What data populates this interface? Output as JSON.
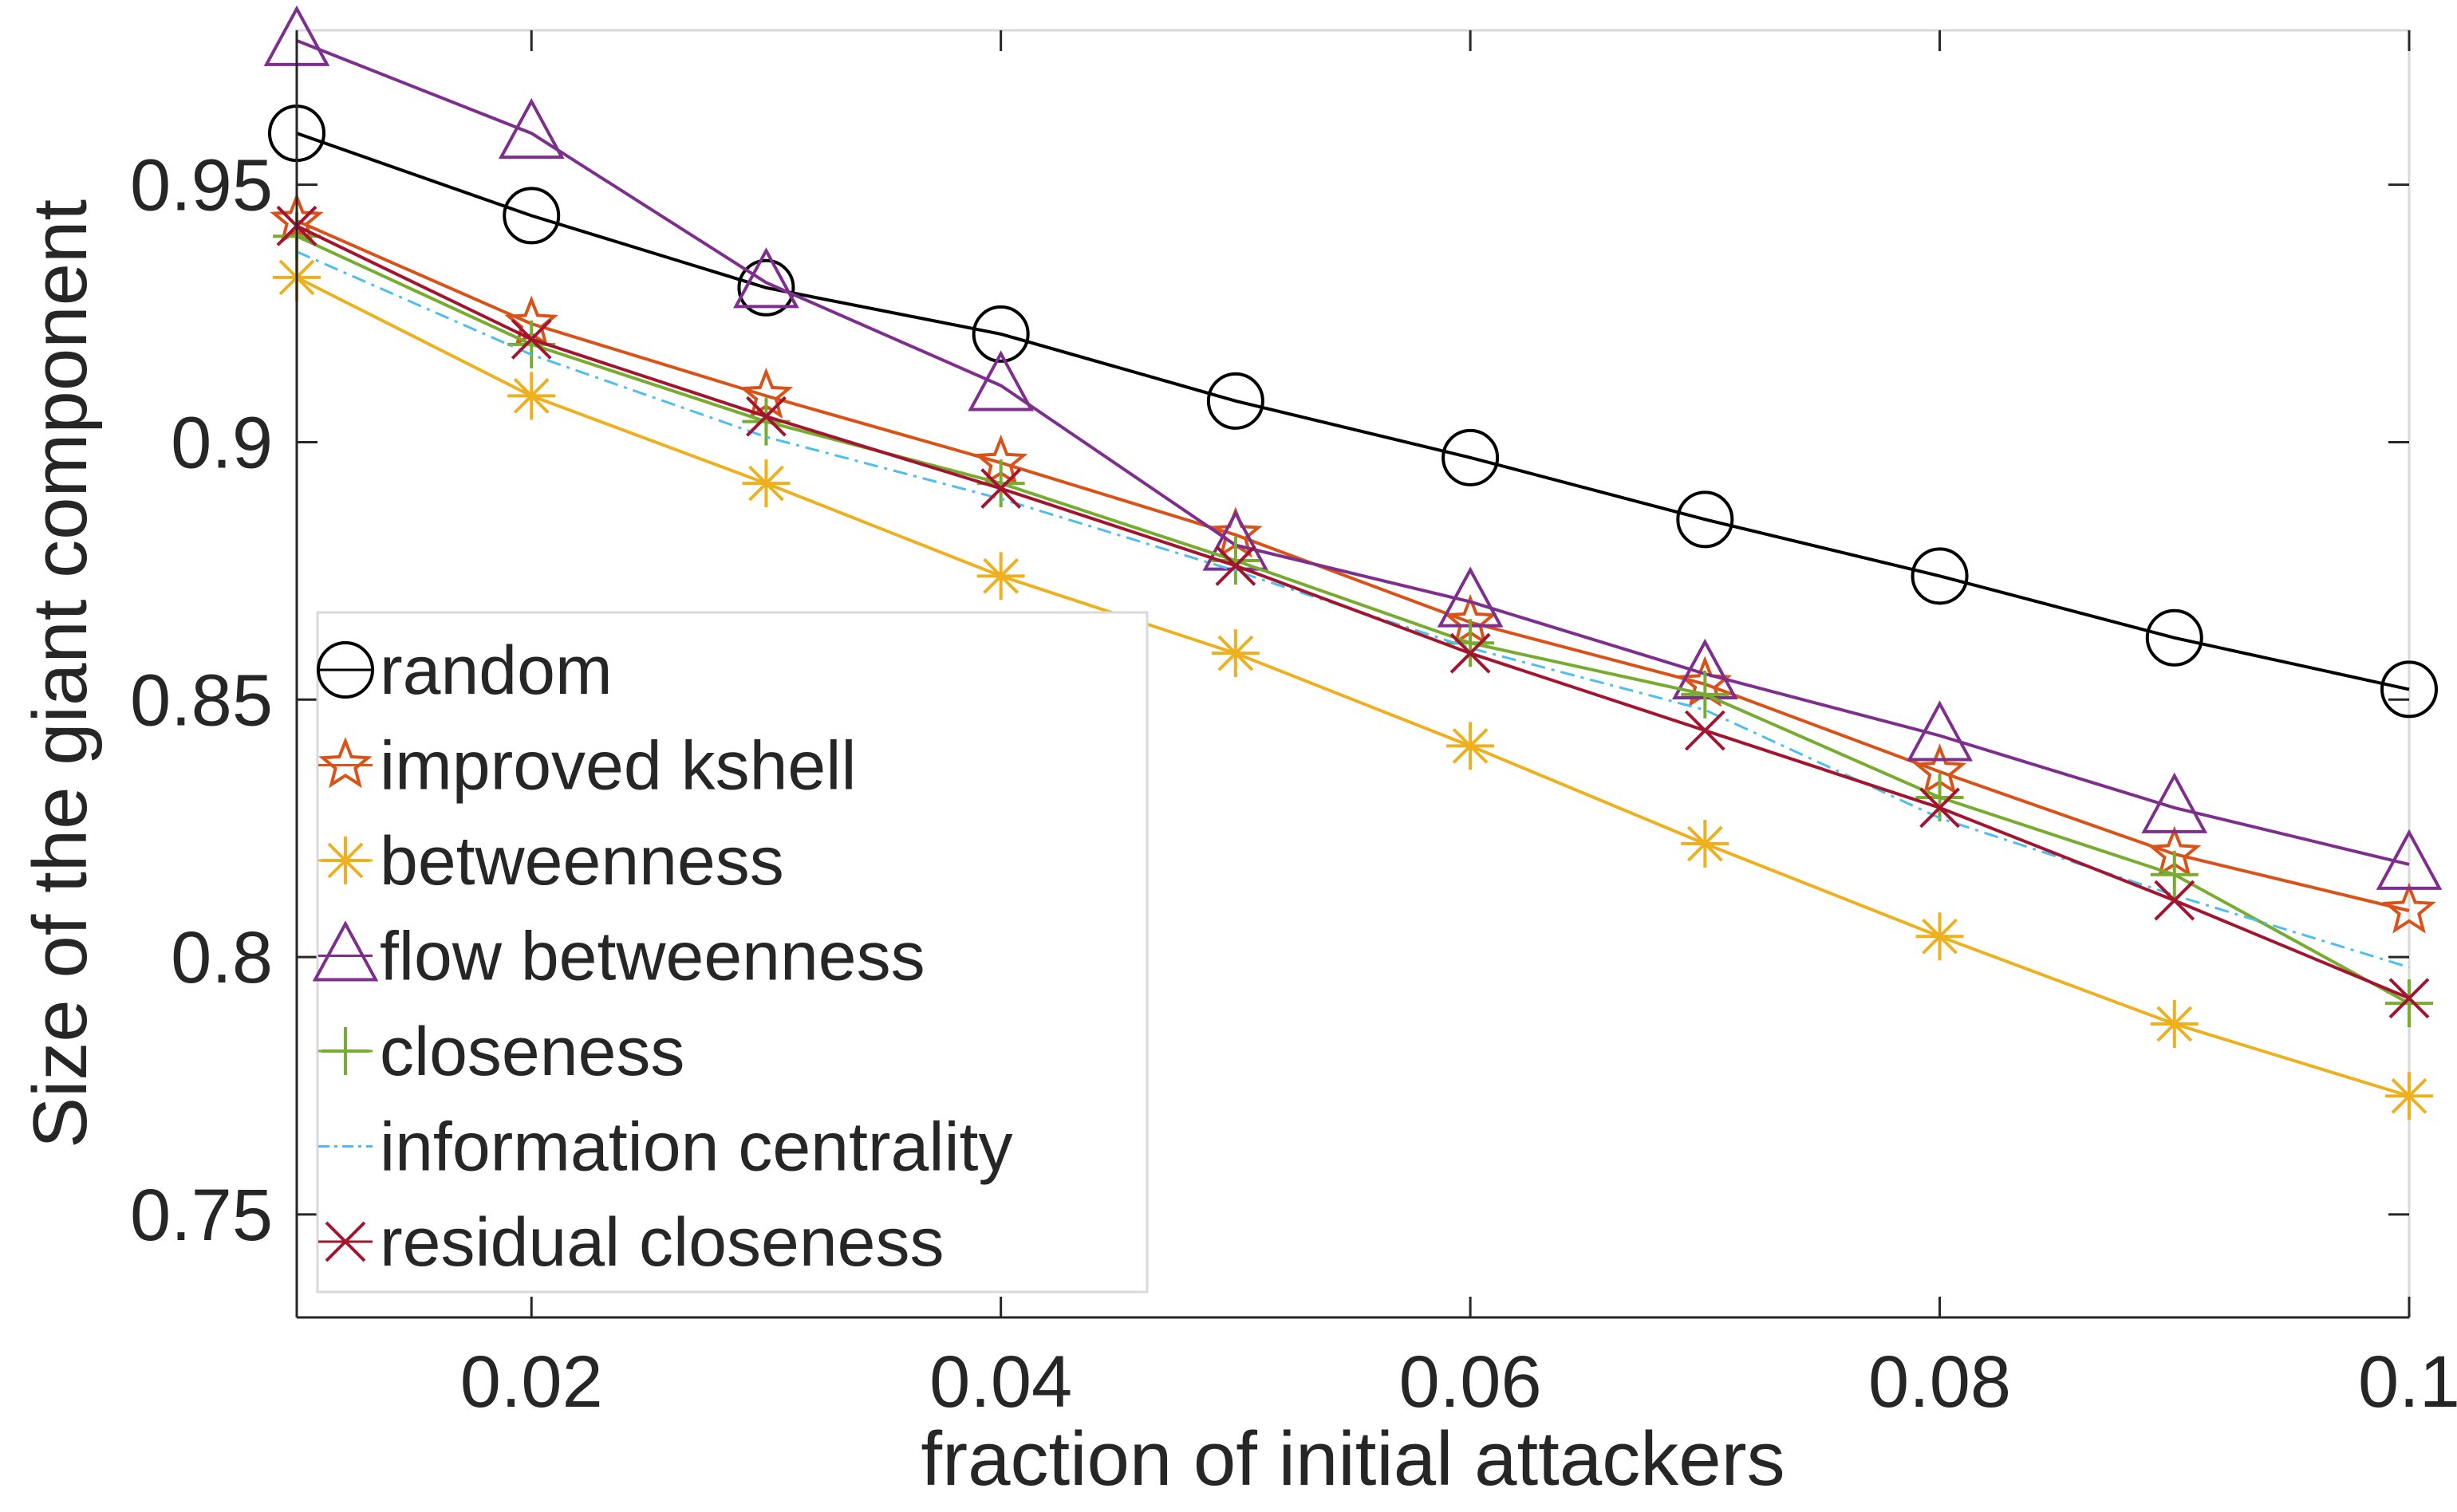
{
  "colors": {
    "random": "#000000",
    "improved_kshell": "#D95319",
    "betweenness": "#EDB120",
    "flow_betweenness": "#7E2F8E",
    "closeness": "#77AC30",
    "information_centrality": "#4DBEEE",
    "residual_closeness": "#A2142F",
    "axis": "#262626",
    "grid_box": "#d9d9d9"
  },
  "chart_data": {
    "type": "line",
    "xlabel": "fraction of initial attackers",
    "ylabel": "Size of the giant component",
    "xlim": [
      0.01,
      0.1
    ],
    "ylim": [
      0.73,
      0.98
    ],
    "x_ticks": [
      0.02,
      0.04,
      0.06,
      0.08,
      0.1
    ],
    "x_tick_labels": [
      "0.02",
      "0.04",
      "0.06",
      "0.08",
      "0.1"
    ],
    "y_ticks": [
      0.75,
      0.8,
      0.85,
      0.9,
      0.95
    ],
    "y_tick_labels": [
      "0.75",
      "0.8",
      "0.85",
      "0.9",
      "0.95"
    ],
    "grid": false,
    "legend_position": "bottom-left",
    "x": [
      0.01,
      0.02,
      0.03,
      0.04,
      0.05,
      0.06,
      0.07,
      0.08,
      0.09,
      0.1
    ],
    "series": [
      {
        "key": "random",
        "name": "random",
        "marker": "circle",
        "line": "solid",
        "values": [
          0.96,
          0.944,
          0.93,
          0.921,
          0.908,
          0.897,
          0.885,
          0.874,
          0.862,
          0.852
        ]
      },
      {
        "key": "improved_kshell",
        "name": "improved kshell",
        "marker": "star",
        "line": "solid",
        "values": [
          0.943,
          0.923,
          0.909,
          0.896,
          0.882,
          0.865,
          0.853,
          0.836,
          0.82,
          0.809
        ]
      },
      {
        "key": "betweenness",
        "name": "betweenness",
        "marker": "asterisk",
        "line": "solid",
        "values": [
          0.932,
          0.909,
          0.892,
          0.874,
          0.859,
          0.841,
          0.822,
          0.804,
          0.787,
          0.773
        ]
      },
      {
        "key": "flow_betweenness",
        "name": "flow betweenness",
        "marker": "triangle",
        "line": "solid",
        "values": [
          0.978,
          0.96,
          0.931,
          0.911,
          0.88,
          0.869,
          0.855,
          0.843,
          0.829,
          0.818
        ]
      },
      {
        "key": "closeness",
        "name": "closeness",
        "marker": "plus",
        "line": "solid",
        "values": [
          0.94,
          0.919,
          0.904,
          0.892,
          0.877,
          0.861,
          0.851,
          0.831,
          0.816,
          0.791
        ]
      },
      {
        "key": "information_centrality",
        "name": "information centrality",
        "marker": "none",
        "line": "dashdot",
        "values": [
          0.937,
          0.917,
          0.901,
          0.889,
          0.875,
          0.86,
          0.848,
          0.827,
          0.812,
          0.798
        ]
      },
      {
        "key": "residual_closeness",
        "name": "residual closeness",
        "marker": "x",
        "line": "solid",
        "values": [
          0.942,
          0.92,
          0.905,
          0.891,
          0.876,
          0.859,
          0.844,
          0.829,
          0.811,
          0.792
        ]
      }
    ]
  }
}
